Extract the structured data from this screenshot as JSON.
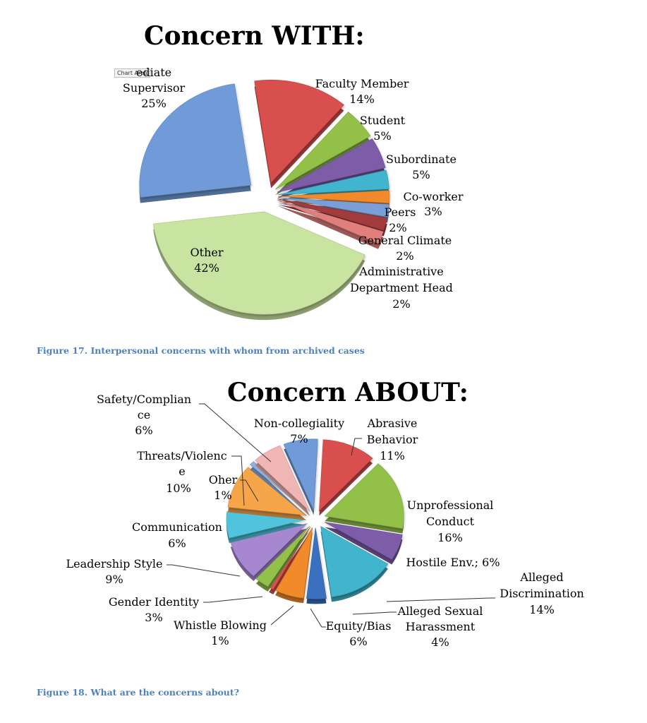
{
  "chart_data": [
    {
      "type": "pie",
      "title": "Concern WITH:",
      "caption": "Figure 17.  Interpersonal concerns with whom from archived cases",
      "slices": [
        {
          "name": "Faculty Member",
          "value": 14,
          "label": "14%",
          "color": "#d9504e"
        },
        {
          "name": "Student",
          "value": 5,
          "label": "5%",
          "color": "#93c04a"
        },
        {
          "name": "Subordinate",
          "value": 5,
          "label": "5%",
          "color": "#7d5ca8"
        },
        {
          "name": "Co-worker",
          "value": 3,
          "label": "3%",
          "color": "#3fb5cd"
        },
        {
          "name": "Peers",
          "value": 2,
          "label": "2%",
          "color": "#f08a2a"
        },
        {
          "name": "General Climate",
          "value": 2,
          "label": "2%",
          "color": "#7a9fd8"
        },
        {
          "name": "Administrative",
          "value": 2,
          "label": "2%",
          "color": "#a23b3a"
        },
        {
          "name": "Department Head",
          "value": 2,
          "label": "2%",
          "color": "#e07f7c"
        },
        {
          "name": "Other",
          "value": 42,
          "label": "42%",
          "color": "#c9e3a0"
        },
        {
          "name": "Immediate Supervisor",
          "value": 25,
          "label": "25%",
          "color": "#6f9bd8"
        }
      ],
      "label_lines": {
        "supervisor": [
          "ediate",
          "Supervisor",
          "25%"
        ],
        "faculty": [
          "Faculty Member",
          "14%"
        ],
        "student": [
          "Student",
          "5%"
        ],
        "subordinate": [
          "Subordinate",
          "5%"
        ],
        "coworker": [
          "Co-worker",
          "3%"
        ],
        "peers": [
          "Peers",
          "2%"
        ],
        "climate": [
          "General Climate",
          "2%"
        ],
        "admin": [
          "Administrative",
          "Department Head",
          "2%"
        ],
        "other": [
          "Other",
          "42%"
        ]
      },
      "tooltip": "Chart Area"
    },
    {
      "type": "pie",
      "title": "Concern ABOUT:",
      "caption": "Figure 18. What are the concerns about?",
      "slices": [
        {
          "name": "Abrasive Behavior",
          "value": 11,
          "label": "11%",
          "color": "#d9504e"
        },
        {
          "name": "Unprofessional Conduct",
          "value": 16,
          "label": "16%",
          "color": "#93c04a"
        },
        {
          "name": "Hostile Env.",
          "value": 6,
          "label": "6%",
          "color": "#7d5ca8"
        },
        {
          "name": "Alleged Discrimination",
          "value": 14,
          "label": "14%",
          "color": "#3fb5cd"
        },
        {
          "name": "Alleged Sexual Harassment",
          "value": 4,
          "label": "4%",
          "color": "#3a6fbf"
        },
        {
          "name": "Equity/Bias",
          "value": 6,
          "label": "6%",
          "color": "#f08a2a"
        },
        {
          "name": "Whistle Blowing",
          "value": 1,
          "label": "1%",
          "color": "#e0504e"
        },
        {
          "name": "Gender Identity",
          "value": 3,
          "label": "3%",
          "color": "#93c04a"
        },
        {
          "name": "Leadership Style",
          "value": 9,
          "label": "9%",
          "color": "#a788d0"
        },
        {
          "name": "Communication",
          "value": 6,
          "label": "6%",
          "color": "#4fc4dc"
        },
        {
          "name": "Threats/Violence",
          "value": 10,
          "label": "10%",
          "color": "#f6a54a"
        },
        {
          "name": "Oher",
          "value": 1,
          "label": "1%",
          "color": "#8fb0e0"
        },
        {
          "name": "Safety/Compliance",
          "value": 6,
          "label": "6%",
          "color": "#f0b6b4"
        },
        {
          "name": "Non-collegiality",
          "value": 7,
          "label": "7%",
          "color": "#6f9bd8"
        }
      ],
      "label_lines": {
        "abrasive": [
          "Abrasive",
          "Behavior",
          "11%"
        ],
        "unprof": [
          "Unprofessional",
          "Conduct",
          "16%"
        ],
        "hostile": [
          "Hostile Env.; 6%"
        ],
        "discrim": [
          "Alleged",
          "Discrimination",
          "14%"
        ],
        "sexual": [
          "Alleged Sexual",
          "Harassment",
          "4%"
        ],
        "equity": [
          "Equity/Bias",
          "6%"
        ],
        "whistle": [
          "Whistle Blowing",
          "1%"
        ],
        "gender": [
          "Gender Identity",
          "3%"
        ],
        "leader": [
          "Leadership Style",
          "9%"
        ],
        "comm": [
          "Communication",
          "6%"
        ],
        "threats": [
          "Threats/Violenc",
          "e",
          "10%"
        ],
        "oher": [
          "Oher",
          "1%"
        ],
        "safety": [
          "Safety/Complian",
          "ce",
          "6%"
        ],
        "noncol": [
          "Non-collegiality",
          "7%"
        ]
      }
    }
  ]
}
